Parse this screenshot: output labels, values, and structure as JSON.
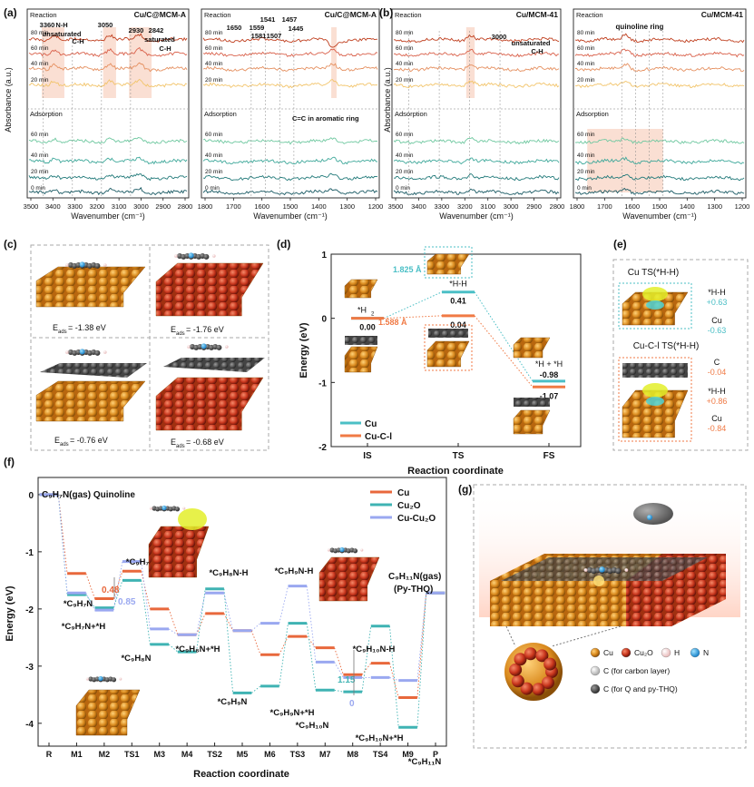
{
  "panel_labels": {
    "a": "(a)",
    "b": "(b)",
    "c": "(c)",
    "d": "(d)",
    "e": "(e)",
    "f": "(f)",
    "g": "(g)"
  },
  "colors": {
    "cu": "#e8683c",
    "cu2o": "#3fb3b3",
    "cu_cu2o": "#9aa8f0",
    "cu_c_l": "#f07a45",
    "cu_teal": "#4bbfc6",
    "reaction_lines": [
      "#c04020",
      "#d9604a",
      "#e59060",
      "#f2c46a"
    ],
    "adsorption_lines": [
      "#6fc8a0",
      "#3ea89a",
      "#227a7a",
      "#1a5a64"
    ],
    "highlight": "#f6c9b6",
    "orbital": "#e3ef2a",
    "copper": "#d88a1e",
    "carbon": "#2b2b2b",
    "nitrogen": "#1f8fd6",
    "oxygen": "#d8262e"
  },
  "ir_axes": {
    "ylabel": "Absorbance (a.u.)",
    "xlabel": "Wavenumber (cm⁻¹)",
    "ticks_high": [
      "3500",
      "3400",
      "3300",
      "3200",
      "3100",
      "3000",
      "2900",
      "2800"
    ],
    "ticks_low": [
      "1800",
      "1700",
      "1600",
      "1500",
      "1400",
      "1300",
      "1200"
    ]
  },
  "panel_a1": {
    "title": "Cu/C@MCM-A",
    "reaction_label": "Reaction",
    "adsorption_label": "Adsorption",
    "reaction_times": [
      "80 min",
      "60 min",
      "40 min",
      "20 min"
    ],
    "adsorption_times": [
      "60 min",
      "40 min",
      "20 min",
      "0 min"
    ],
    "annotations": [
      "3360",
      "N-H",
      "unsaturated",
      "C-H",
      "3050",
      "2930",
      "2842",
      "saturated",
      "C-H"
    ]
  },
  "panel_a2": {
    "title": "Cu/C@MCM-A",
    "reaction_label": "Reaction",
    "adsorption_label": "Adsorption",
    "reaction_times": [
      "80 min",
      "60 min",
      "40 min",
      "20 min"
    ],
    "adsorption_times": [
      "60 min",
      "40 min",
      "20 min",
      "0 min"
    ],
    "peaks": [
      "1650",
      "1559",
      "1581",
      "1541",
      "1507",
      "1457",
      "1445"
    ],
    "ring_note": "C=C in aromatic ring"
  },
  "panel_b1": {
    "title": "Cu/MCM-41",
    "reaction_label": "Reaction",
    "adsorption_label": "Adsorption",
    "reaction_times": [
      "80 min",
      "60 min",
      "40 min",
      "20 min"
    ],
    "adsorption_times": [
      "60 min",
      "40 min",
      "20 min",
      "0 min"
    ],
    "peak": "3000",
    "peak_note1": "unsaturated",
    "peak_note2": "C-H"
  },
  "panel_b2": {
    "title": "Cu/MCM-41",
    "reaction_label": "Reaction",
    "adsorption_label": "Adsorption",
    "reaction_times": [
      "80 min",
      "60 min",
      "40 min",
      "20 min"
    ],
    "adsorption_times": [
      "60 min",
      "40 min",
      "20 min",
      "0 min"
    ],
    "ring_note": "quinoline ring"
  },
  "panel_c": {
    "energies": [
      "E",
      "ads",
      "= -1.38 eV",
      "E",
      "ads",
      "= -1.76 eV",
      "E",
      "ads",
      "= -0.76 eV",
      "E",
      "ads",
      "= -0.68 eV"
    ]
  },
  "panel_d": {
    "ylabel": "Energy (eV)",
    "xlabel": "Reaction coordinate",
    "x_ticks": [
      "IS",
      "TS",
      "FS"
    ],
    "y_ticks": [
      "1",
      "0",
      "-1",
      "-2"
    ],
    "legend": [
      "Cu",
      "Cu-C-l"
    ],
    "labels": {
      "h2": "*H",
      "h2_sub": "2",
      "hh": "*H-H",
      "fs": "*H + *H",
      "bond1": "1.825 Å",
      "bond2": "1.588 Å"
    },
    "values": {
      "is": "0.00",
      "ts_cu": "0.41",
      "ts_cucl": "0.04",
      "fs_cu": "-0.98",
      "fs_cucl": "-1.07"
    }
  },
  "panel_e": {
    "box1_title": "Cu TS(*H-H)",
    "box1_labels": [
      "*H-H",
      "+0.63",
      "Cu",
      "-0.63"
    ],
    "box2_title": "Cu-C-l TS(*H-H)",
    "box2_labels": [
      "C",
      "-0.04",
      "*H-H",
      "+0.86",
      "Cu",
      "-0.84"
    ]
  },
  "panel_f": {
    "ylabel": "Energy (eV)",
    "xlabel": "Reaction coordinate",
    "x_ticks": [
      "R",
      "M1",
      "M2",
      "TS1",
      "M3",
      "M4",
      "TS2",
      "M5",
      "M6",
      "TS3",
      "M7",
      "M8",
      "TS4",
      "M9",
      "P"
    ],
    "y_ticks": [
      "0",
      "-1",
      "-2",
      "-3",
      "-4"
    ],
    "legend": [
      "Cu",
      "Cu₂O",
      "Cu-Cu₂O"
    ],
    "start_label": "C₉H₇N(gas) Quinoline",
    "product_label_1": "C₉H₁₁N(gas)",
    "product_label_2": "(Py-THQ)",
    "species": [
      "*C₉H₇N-H",
      "*C₉H₇N",
      "*C₉H₇N+*H",
      "*C₉H₈N-H",
      "*C₉H₈N",
      "*C₉H₈N+*H",
      "*C₉H₉N",
      "*C₉H₉N-H",
      "*C₉H₉N+*H",
      "*C₉H₁₀N",
      "*C₉H₁₀N-H",
      "*C₉H₁₀N+*H",
      "*C₉H₁₁N"
    ],
    "barriers": [
      "0.48",
      "0.85",
      "1.15",
      "0"
    ]
  },
  "panel_g": {
    "legend": [
      "Cu",
      "Cu₂O",
      "H",
      "N",
      "C (for carbon layer)",
      "C (for Q and py-THQ)"
    ]
  },
  "chart_data": [
    {
      "type": "line",
      "title": "",
      "xlabel": "Reaction coordinate",
      "ylabel": "Energy (eV)",
      "categories": [
        "IS",
        "TS",
        "FS"
      ],
      "ylim": [
        -2,
        1
      ],
      "series": [
        {
          "name": "Cu",
          "values": [
            0.0,
            0.41,
            -0.98
          ]
        },
        {
          "name": "Cu-C-l",
          "values": [
            0.0,
            0.04,
            -1.07
          ]
        }
      ]
    },
    {
      "type": "line",
      "title": "",
      "xlabel": "Reaction coordinate",
      "ylabel": "Energy (eV)",
      "categories": [
        "R",
        "M1",
        "M2",
        "TS1",
        "M3",
        "M4",
        "TS2",
        "M5",
        "M6",
        "TS3",
        "M7",
        "M8",
        "TS4",
        "M9",
        "P"
      ],
      "ylim": [
        -4.4,
        0.3
      ],
      "series": [
        {
          "name": "Cu",
          "values": [
            0,
            -1.38,
            -1.82,
            -1.34,
            -2.0,
            -2.45,
            -2.08,
            -2.38,
            -2.8,
            -2.48,
            -2.68,
            -3.15,
            -2.95,
            -3.55,
            -1.72
          ]
        },
        {
          "name": "Cu₂O",
          "values": [
            0,
            -1.75,
            -1.98,
            -1.5,
            -2.62,
            -2.75,
            -1.65,
            -3.47,
            -3.35,
            -2.25,
            -3.42,
            -3.45,
            -2.3,
            -4.07,
            -1.72
          ]
        },
        {
          "name": "Cu-Cu₂O",
          "values": [
            0,
            -1.72,
            -2.02,
            -1.17,
            -2.35,
            -2.45,
            -1.72,
            -2.38,
            -2.25,
            -1.6,
            -2.93,
            -3.2,
            -3.2,
            -3.25,
            -1.72
          ]
        }
      ]
    }
  ]
}
